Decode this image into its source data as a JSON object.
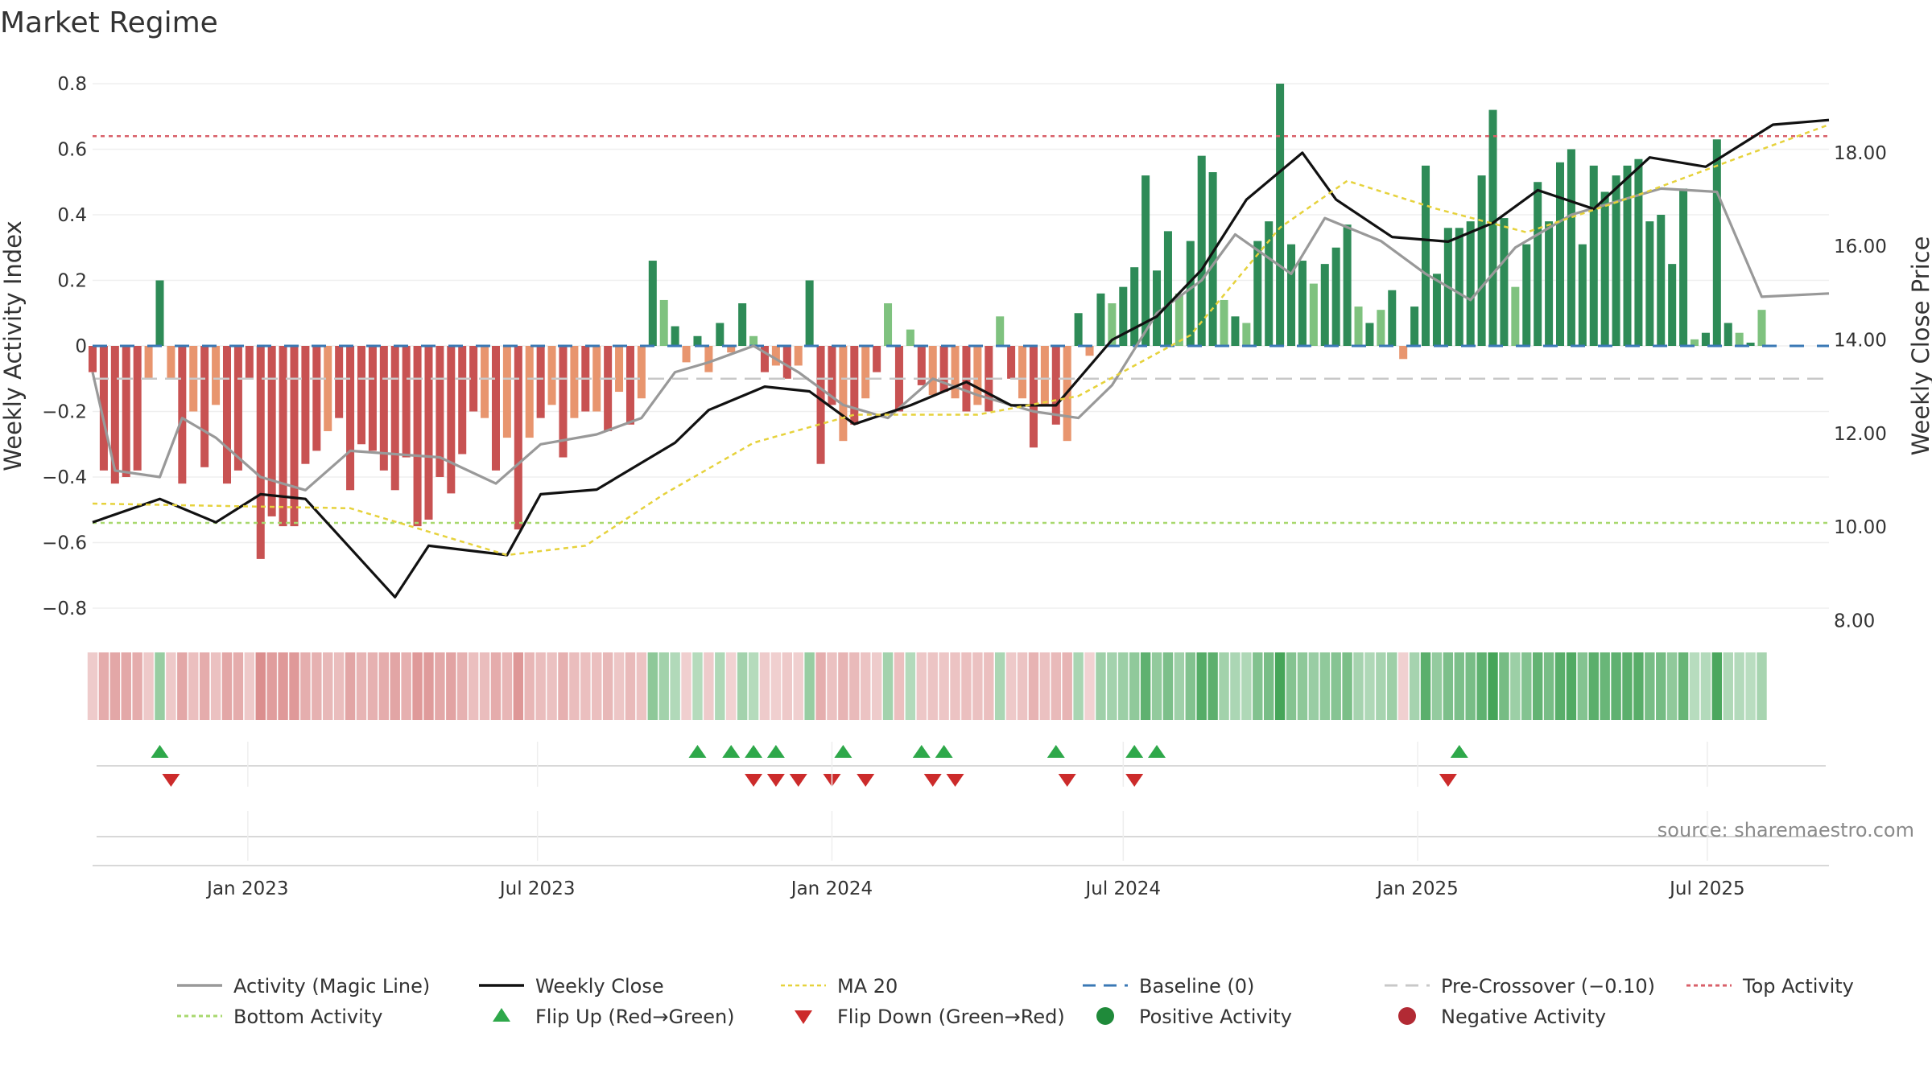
{
  "title": "Market Regime",
  "source": "source: sharemaestro.com",
  "axes": {
    "left_label": "Weekly Activity Index",
    "right_label": "Weekly Close Price",
    "left_ticks": [
      "0.8",
      "0.6",
      "0.4",
      "0.2",
      "0",
      "−0.2",
      "−0.4",
      "−0.6",
      "−0.8"
    ],
    "right_ticks": [
      "18.00",
      "16.00",
      "14.00",
      "12.00",
      "10.00",
      "8.00"
    ],
    "x_ticks": [
      "Jan 2023",
      "Jul 2023",
      "Jan 2024",
      "Jul 2024",
      "Jan 2025",
      "Jul 2025"
    ]
  },
  "legend": [
    {
      "label": "Activity (Magic Line)",
      "key": "magic"
    },
    {
      "label": "Weekly Close",
      "key": "close"
    },
    {
      "label": "MA 20",
      "key": "ma"
    },
    {
      "label": "Baseline (0)",
      "key": "baseline"
    },
    {
      "label": "Pre-Crossover (−0.10)",
      "key": "precross"
    },
    {
      "label": "Top Activity",
      "key": "top"
    },
    {
      "label": "Bottom Activity",
      "key": "bottom"
    },
    {
      "label": "Flip Up (Red→Green)",
      "key": "flipup"
    },
    {
      "label": "Flip Down (Green→Red)",
      "key": "flipdown"
    },
    {
      "label": "Positive Activity",
      "key": "pos"
    },
    {
      "label": "Negative Activity",
      "key": "neg"
    }
  ],
  "colors": {
    "pos_strong": "#2e8b57",
    "pos_weak": "#7fc27f",
    "neg_strong": "#c85252",
    "neg_weak": "#e8956e",
    "close": "#111111",
    "magic": "#999999",
    "ma": "#e6d23c",
    "baseline": "#3a78b5",
    "precross": "#c8c8c8",
    "top": "#d9606a",
    "bottom": "#a8d86e",
    "flip_up": "#2ea84a",
    "flip_down": "#cc2b2b"
  },
  "chart_data": {
    "type": "bar",
    "title": "Market Regime",
    "xlabel": "",
    "ylabel": "Weekly Activity Index",
    "y2label": "Weekly Close Price",
    "ylim": [
      -0.86,
      0.86
    ],
    "y2lim": [
      7.9,
      19.8
    ],
    "grid": true,
    "legend_position": "bottom",
    "x_start": "2022-09-26",
    "x_end": "2025-09-15",
    "reference_lines": {
      "top_activity": 0.64,
      "bottom_activity": -0.54,
      "baseline": 0,
      "pre_crossover": -0.1
    },
    "series": [
      {
        "name": "Activity (Magic Line)",
        "type": "line",
        "axis": "left",
        "points": [
          [
            "2022-09-26",
            -0.08
          ],
          [
            "2022-10-10",
            -0.38
          ],
          [
            "2022-11-07",
            -0.4
          ],
          [
            "2022-11-21",
            -0.22
          ],
          [
            "2022-12-12",
            -0.28
          ],
          [
            "2023-01-09",
            -0.4
          ],
          [
            "2023-02-06",
            -0.44
          ],
          [
            "2023-03-06",
            -0.32
          ],
          [
            "2023-04-03",
            -0.33
          ],
          [
            "2023-05-01",
            -0.34
          ],
          [
            "2023-06-05",
            -0.42
          ],
          [
            "2023-07-03",
            -0.3
          ],
          [
            "2023-08-07",
            -0.27
          ],
          [
            "2023-09-04",
            -0.22
          ],
          [
            "2023-09-25",
            -0.08
          ],
          [
            "2023-10-16",
            -0.05
          ],
          [
            "2023-11-13",
            0.0
          ],
          [
            "2023-12-11",
            -0.08
          ],
          [
            "2024-01-08",
            -0.18
          ],
          [
            "2024-02-05",
            -0.22
          ],
          [
            "2024-03-04",
            -0.1
          ],
          [
            "2024-04-01",
            -0.15
          ],
          [
            "2024-05-06",
            -0.2
          ],
          [
            "2024-06-03",
            -0.22
          ],
          [
            "2024-06-24",
            -0.12
          ],
          [
            "2024-07-22",
            0.1
          ],
          [
            "2024-08-19",
            0.2
          ],
          [
            "2024-09-09",
            0.34
          ],
          [
            "2024-10-14",
            0.22
          ],
          [
            "2024-11-04",
            0.39
          ],
          [
            "2024-12-09",
            0.32
          ],
          [
            "2025-01-06",
            0.22
          ],
          [
            "2025-02-03",
            0.14
          ],
          [
            "2025-03-03",
            0.3
          ],
          [
            "2025-04-07",
            0.4
          ],
          [
            "2025-05-05",
            0.44
          ],
          [
            "2025-06-02",
            0.48
          ],
          [
            "2025-07-07",
            0.47
          ],
          [
            "2025-08-04",
            0.15
          ],
          [
            "2025-09-15",
            0.16
          ]
        ]
      },
      {
        "name": "Weekly Close",
        "type": "line",
        "axis": "right",
        "points": [
          [
            "2022-09-26",
            10.1
          ],
          [
            "2022-11-07",
            10.6
          ],
          [
            "2022-12-12",
            10.1
          ],
          [
            "2023-01-09",
            10.7
          ],
          [
            "2023-02-06",
            10.6
          ],
          [
            "2023-04-03",
            8.5
          ],
          [
            "2023-04-24",
            9.6
          ],
          [
            "2023-06-12",
            9.4
          ],
          [
            "2023-07-03",
            10.7
          ],
          [
            "2023-08-07",
            10.8
          ],
          [
            "2023-09-25",
            11.8
          ],
          [
            "2023-10-16",
            12.5
          ],
          [
            "2023-11-20",
            13.0
          ],
          [
            "2023-12-18",
            12.9
          ],
          [
            "2024-01-15",
            12.2
          ],
          [
            "2024-02-19",
            12.6
          ],
          [
            "2024-03-25",
            13.1
          ],
          [
            "2024-04-22",
            12.6
          ],
          [
            "2024-05-20",
            12.6
          ],
          [
            "2024-06-24",
            14.0
          ],
          [
            "2024-07-22",
            14.5
          ],
          [
            "2024-08-19",
            15.5
          ],
          [
            "2024-09-16",
            17.0
          ],
          [
            "2024-10-21",
            18.0
          ],
          [
            "2024-11-11",
            17.0
          ],
          [
            "2024-12-16",
            16.2
          ],
          [
            "2025-01-20",
            16.1
          ],
          [
            "2025-02-17",
            16.5
          ],
          [
            "2025-03-17",
            17.2
          ],
          [
            "2025-04-21",
            16.8
          ],
          [
            "2025-05-26",
            17.9
          ],
          [
            "2025-06-30",
            17.7
          ],
          [
            "2025-08-11",
            18.6
          ],
          [
            "2025-09-15",
            18.7
          ]
        ]
      },
      {
        "name": "MA 20",
        "type": "line",
        "axis": "right",
        "points": [
          [
            "2022-09-26",
            10.5
          ],
          [
            "2023-03-06",
            10.4
          ],
          [
            "2023-06-12",
            9.4
          ],
          [
            "2023-07-31",
            9.6
          ],
          [
            "2023-09-18",
            10.7
          ],
          [
            "2023-11-13",
            11.8
          ],
          [
            "2024-01-15",
            12.4
          ],
          [
            "2024-04-01",
            12.4
          ],
          [
            "2024-06-03",
            12.8
          ],
          [
            "2024-08-12",
            14.1
          ],
          [
            "2024-10-07",
            16.4
          ],
          [
            "2024-11-18",
            17.4
          ],
          [
            "2025-01-13",
            16.8
          ],
          [
            "2025-03-10",
            16.3
          ],
          [
            "2025-05-19",
            17.1
          ],
          [
            "2025-07-21",
            17.9
          ],
          [
            "2025-09-15",
            18.6
          ]
        ]
      }
    ],
    "activity_bars": {
      "start": "2022-09-26",
      "interval_days": 7,
      "values": [
        -0.08,
        -0.38,
        -0.42,
        -0.4,
        -0.38,
        -0.1,
        0.2,
        -0.1,
        -0.42,
        -0.2,
        -0.37,
        -0.18,
        -0.42,
        -0.38,
        -0.1,
        -0.65,
        -0.52,
        -0.55,
        -0.55,
        -0.36,
        -0.32,
        -0.26,
        -0.22,
        -0.44,
        -0.3,
        -0.32,
        -0.38,
        -0.44,
        -0.34,
        -0.55,
        -0.53,
        -0.4,
        -0.45,
        -0.33,
        -0.2,
        -0.22,
        -0.38,
        -0.28,
        -0.56,
        -0.28,
        -0.22,
        -0.18,
        -0.34,
        -0.22,
        -0.2,
        -0.2,
        -0.26,
        -0.14,
        -0.24,
        -0.16,
        0.26,
        0.14,
        0.06,
        -0.05,
        0.03,
        -0.08,
        0.07,
        -0.02,
        0.13,
        0.03,
        -0.08,
        -0.06,
        -0.1,
        -0.06,
        0.2,
        -0.36,
        -0.18,
        -0.29,
        -0.24,
        -0.16,
        -0.08,
        0.13,
        -0.2,
        0.05,
        -0.12,
        -0.15,
        -0.14,
        -0.16,
        -0.2,
        -0.18,
        -0.2,
        0.09,
        -0.1,
        -0.16,
        -0.31,
        -0.18,
        -0.24,
        -0.29,
        0.1,
        -0.03,
        0.16,
        0.13,
        0.18,
        0.24,
        0.52,
        0.23,
        0.35,
        0.16,
        0.32,
        0.58,
        0.53,
        0.14,
        0.09,
        0.07,
        0.32,
        0.38,
        0.8,
        0.31,
        0.26,
        0.19,
        0.25,
        0.3,
        0.37,
        0.12,
        0.07,
        0.11,
        0.17,
        -0.04,
        0.12,
        0.55,
        0.22,
        0.36,
        0.36,
        0.38,
        0.52,
        0.72,
        0.39,
        0.18,
        0.31,
        0.5,
        0.38,
        0.56,
        0.6,
        0.31,
        0.55,
        0.47,
        0.52,
        0.55,
        0.57,
        0.38,
        0.4,
        0.25,
        0.48,
        0.02,
        0.04,
        0.63,
        0.07,
        0.04,
        0.01,
        0.11
      ]
    },
    "flip_up": [
      "2022-11-07",
      "2023-10-09",
      "2023-10-30",
      "2023-11-13",
      "2023-11-27",
      "2024-01-08",
      "2024-02-26",
      "2024-03-11",
      "2024-05-20",
      "2024-07-08",
      "2024-07-22",
      "2025-01-27"
    ],
    "flip_down": [
      "2022-11-14",
      "2023-11-13",
      "2023-11-27",
      "2023-12-11",
      "2024-01-01",
      "2024-01-22",
      "2024-03-04",
      "2024-03-18",
      "2024-05-27",
      "2024-07-08",
      "2025-01-20"
    ]
  }
}
